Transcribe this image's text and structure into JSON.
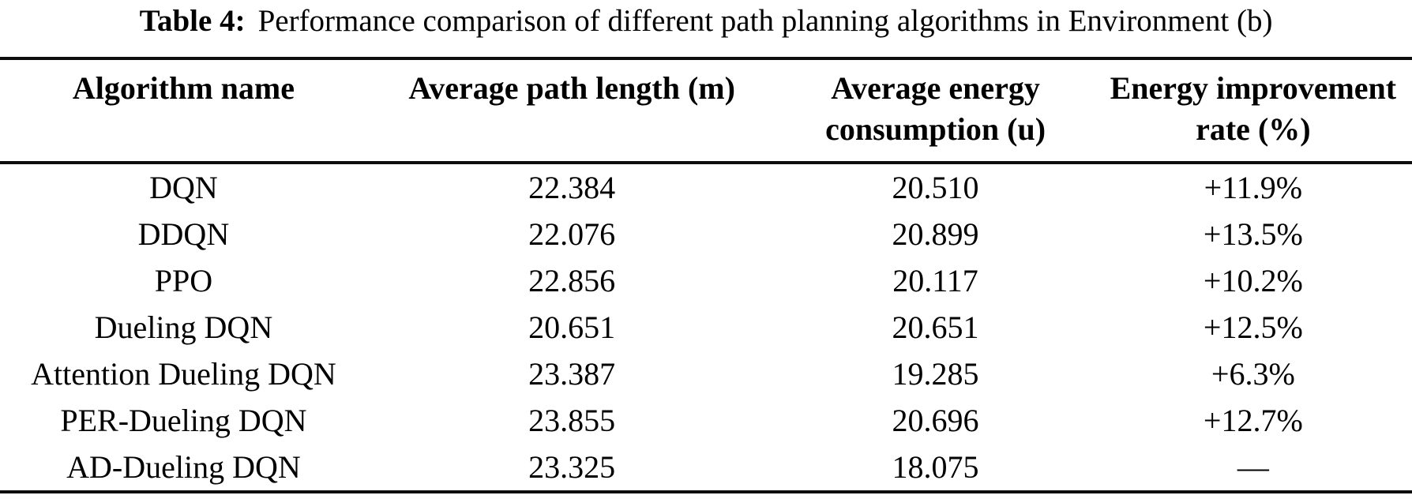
{
  "title": {
    "label": "Table 4:",
    "text": "Performance comparison of different path planning algorithms in Environment (b)"
  },
  "table": {
    "columns": [
      {
        "name": "algorithm-name",
        "line1": "Algorithm name",
        "line2": ""
      },
      {
        "name": "avg-path-length",
        "line1": "Average path length (m)",
        "line2": ""
      },
      {
        "name": "avg-energy",
        "line1": "Average energy",
        "line2": "consumption (u)"
      },
      {
        "name": "energy-improvement",
        "line1": "Energy improvement",
        "line2": "rate (%)"
      }
    ],
    "rows": [
      [
        "DQN",
        "22.384",
        "20.510",
        "+11.9%"
      ],
      [
        "DDQN",
        "22.076",
        "20.899",
        "+13.5%"
      ],
      [
        "PPO",
        "22.856",
        "20.117",
        "+10.2%"
      ],
      [
        "Dueling DQN",
        "20.651",
        "20.651",
        "+12.5%"
      ],
      [
        "Attention Dueling DQN",
        "23.387",
        "19.285",
        "+6.3%"
      ],
      [
        "PER-Dueling DQN",
        "23.855",
        "20.696",
        "+12.7%"
      ],
      [
        "AD-Dueling DQN",
        "23.325",
        "18.075",
        "—"
      ]
    ]
  },
  "colors": {
    "text": "#000000",
    "rule": "#0d0d0d",
    "background": "#ffffff"
  },
  "chart_data": {
    "type": "table",
    "title": "Table 4: Performance comparison of different path planning algorithms in Environment (b)",
    "columns": [
      "Algorithm name",
      "Average path length (m)",
      "Average energy consumption (u)",
      "Energy improvement rate (%)"
    ],
    "rows": [
      [
        "DQN",
        22.384,
        20.51,
        "+11.9%"
      ],
      [
        "DDQN",
        22.076,
        20.899,
        "+13.5%"
      ],
      [
        "PPO",
        22.856,
        20.117,
        "+10.2%"
      ],
      [
        "Dueling DQN",
        20.651,
        20.651,
        "+12.5%"
      ],
      [
        "Attention Dueling DQN",
        23.387,
        19.285,
        "+6.3%"
      ],
      [
        "PER-Dueling DQN",
        23.855,
        20.696,
        "+12.7%"
      ],
      [
        "AD-Dueling DQN",
        23.325,
        18.075,
        "—"
      ]
    ]
  }
}
